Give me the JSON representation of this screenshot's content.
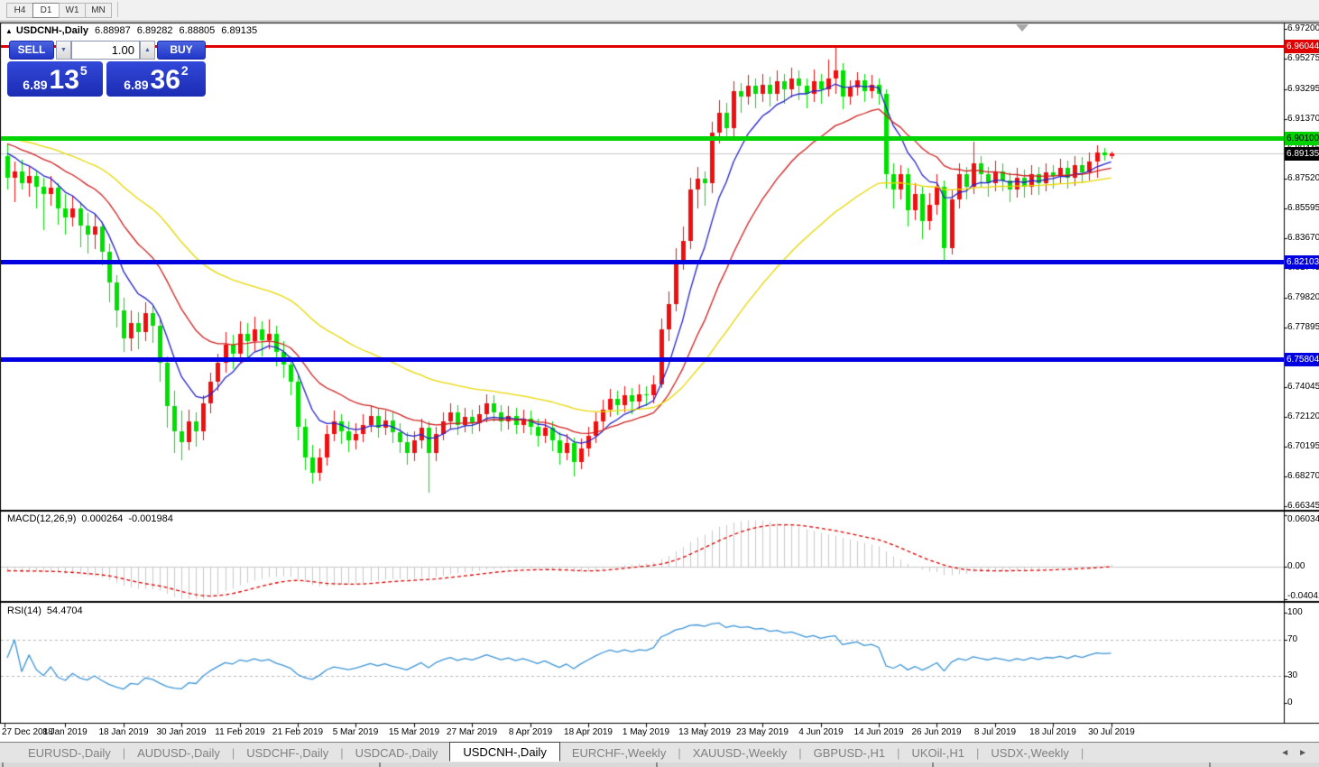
{
  "toolbar": {
    "timeframes": [
      {
        "label": "H4",
        "active": false
      },
      {
        "label": "D1",
        "active": true
      },
      {
        "label": "W1",
        "active": false
      },
      {
        "label": "MN",
        "active": false
      }
    ]
  },
  "chart_header": {
    "collapse_icon": "▲",
    "symbol": "USDCNH-,Daily",
    "open": "6.88987",
    "high": "6.89282",
    "low": "6.88805",
    "close": "6.89135"
  },
  "trade_panel": {
    "sell_label": "SELL",
    "buy_label": "BUY",
    "volume": "1.00",
    "spinner_down_icon": "▼",
    "spinner_up_icon": "▲",
    "sell_price": {
      "prefix": "6.89",
      "big": "13",
      "pip": "5"
    },
    "buy_price": {
      "prefix": "6.89",
      "big": "36",
      "pip": "2"
    }
  },
  "price_axis": {
    "ticks": [
      "6.97200",
      "6.95275",
      "6.93295",
      "6.91370",
      "6.89445",
      "6.87520",
      "6.85595",
      "6.83670",
      "6.81745",
      "6.79820",
      "6.77895",
      "6.74045",
      "6.72120",
      "6.70195",
      "6.68270",
      "6.66345"
    ]
  },
  "levels": [
    {
      "value": 6.96044,
      "label": "6.96044",
      "color": "#E00000",
      "text_color": "#FFFFFF",
      "thickness": 3,
      "name": "resistance-line-upper"
    },
    {
      "value": 6.901,
      "label": "6.90100",
      "color": "#00D400",
      "text_color": "#000000",
      "thickness": 5,
      "name": "resistance-line-lower"
    },
    {
      "value": 6.82103,
      "label": "6.82103",
      "color": "#0000E0",
      "text_color": "#FFFFFF",
      "thickness": 5,
      "name": "support-line-upper"
    },
    {
      "value": 6.75804,
      "label": "6.75804",
      "color": "#0000E0",
      "text_color": "#FFFFFF",
      "thickness": 5,
      "name": "support-line-lower"
    }
  ],
  "bid_marker": {
    "value": 6.89135,
    "label": "6.89135",
    "line_color": "#C8C8C8",
    "badge_bg": "#000000",
    "badge_text": "#FFFFFF"
  },
  "macd_panel": {
    "label": "MACD(12,26,9)",
    "main_value": "0.000264",
    "signal_value": "-0.001984",
    "axis_ticks": [
      "0.060342",
      "0.00",
      "-0.040415"
    ],
    "histogram_color": "#C9C9C9",
    "signal_color": "#DD0000"
  },
  "rsi_panel": {
    "label": "RSI(14)",
    "value": "54.4704",
    "axis_ticks": [
      "100",
      "70",
      "30",
      "0"
    ],
    "line_color": "#3E96D8",
    "level_color": "#B8B8B8"
  },
  "bottom_tabs": {
    "items": [
      "EURUSD-,Daily",
      "AUDUSD-,Daily",
      "USDCHF-,Daily",
      "USDCAD-,Daily",
      "USDCNH-,Daily",
      "EURCHF-,Weekly",
      "XAUUSD-,Weekly",
      "GBPUSD-,H1",
      "UKOil-,H1",
      "USDX-,Weekly"
    ],
    "active_index": 4,
    "scroll_left_icon": "◄",
    "scroll_right_icon": "►"
  },
  "chart_data": {
    "type": "candlestick",
    "symbol": "USDCNH-",
    "timeframe": "Daily",
    "up_color": "#EE1010",
    "down_color": "#00E000",
    "y_axis": {
      "min": 6.66345,
      "max": 6.972
    },
    "x_tick_dates": [
      "27 Dec 2018",
      "8 Jan 2019",
      "18 Jan 2019",
      "30 Jan 2019",
      "11 Feb 2019",
      "21 Feb 2019",
      "5 Mar 2019",
      "15 Mar 2019",
      "27 Mar 2019",
      "8 Apr 2019",
      "18 Apr 2019",
      "1 May 2019",
      "13 May 2019",
      "23 May 2019",
      "4 Jun 2019",
      "14 Jun 2019",
      "26 Jun 2019",
      "8 Jul 2019",
      "18 Jul 2019",
      "30 Jul 2019"
    ],
    "moving_averages": [
      {
        "period": 8,
        "color": "#2222CC",
        "seed": 6.896
      },
      {
        "period": 20,
        "color": "#D02020",
        "seed": 6.9
      },
      {
        "period": 45,
        "color": "#E8D800",
        "seed": 6.903
      }
    ],
    "macd": {
      "fast": 12,
      "slow": 26,
      "signal": 9,
      "axis_max": 0.060342,
      "axis_min": -0.040415
    },
    "rsi": {
      "period": 14,
      "levels": [
        70,
        30
      ]
    },
    "horizontal_levels": [
      6.96044,
      6.901,
      6.82103,
      6.75804
    ],
    "bid_price": 6.89135,
    "candles": [
      [
        6.89,
        6.8975,
        6.8685,
        6.876
      ],
      [
        6.876,
        6.886,
        6.86,
        6.88
      ],
      [
        6.88,
        6.8875,
        6.868,
        6.8725
      ],
      [
        6.8725,
        6.883,
        6.864,
        6.877
      ],
      [
        6.877,
        6.88,
        6.856,
        6.87
      ],
      [
        6.87,
        6.876,
        6.842,
        6.865
      ],
      [
        6.865,
        6.877,
        6.858,
        6.8695
      ],
      [
        6.8695,
        6.872,
        6.845,
        6.856
      ],
      [
        6.856,
        6.865,
        6.839,
        6.85
      ],
      [
        6.85,
        6.864,
        6.844,
        6.856
      ],
      [
        6.856,
        6.86,
        6.831,
        6.845
      ],
      [
        6.845,
        6.853,
        6.827,
        6.839
      ],
      [
        6.839,
        6.852,
        6.83,
        6.844
      ],
      [
        6.844,
        6.847,
        6.819,
        6.828
      ],
      [
        6.828,
        6.833,
        6.795,
        6.808
      ],
      [
        6.808,
        6.813,
        6.779,
        6.79
      ],
      [
        6.79,
        6.798,
        6.763,
        6.772
      ],
      [
        6.772,
        6.79,
        6.764,
        6.782
      ],
      [
        6.782,
        6.789,
        6.765,
        6.776
      ],
      [
        6.776,
        6.795,
        6.77,
        6.788
      ],
      [
        6.788,
        6.793,
        6.769,
        6.78
      ],
      [
        6.78,
        6.784,
        6.744,
        6.756
      ],
      [
        6.756,
        6.76,
        6.714,
        6.728
      ],
      [
        6.728,
        6.738,
        6.698,
        6.712
      ],
      [
        6.712,
        6.725,
        6.693,
        6.705
      ],
      [
        6.705,
        6.726,
        6.7,
        6.718
      ],
      [
        6.718,
        6.724,
        6.702,
        6.712
      ],
      [
        6.712,
        6.735,
        6.706,
        6.73
      ],
      [
        6.73,
        6.75,
        6.724,
        6.744
      ],
      [
        6.744,
        6.762,
        6.738,
        6.756
      ],
      [
        6.756,
        6.776,
        6.75,
        6.768
      ],
      [
        6.768,
        6.774,
        6.752,
        6.762
      ],
      [
        6.762,
        6.783,
        6.756,
        6.775
      ],
      [
        6.775,
        6.782,
        6.759,
        6.77
      ],
      [
        6.77,
        6.786,
        6.764,
        6.778
      ],
      [
        6.778,
        6.783,
        6.76,
        6.771
      ],
      [
        6.771,
        6.784,
        6.765,
        6.775
      ],
      [
        6.775,
        6.78,
        6.754,
        6.763
      ],
      [
        6.763,
        6.77,
        6.746,
        6.755
      ],
      [
        6.755,
        6.76,
        6.735,
        6.744
      ],
      [
        6.744,
        6.748,
        6.706,
        6.715
      ],
      [
        6.715,
        6.72,
        6.687,
        6.695
      ],
      [
        6.695,
        6.703,
        6.678,
        6.685
      ],
      [
        6.685,
        6.701,
        6.68,
        6.695
      ],
      [
        6.695,
        6.716,
        6.69,
        6.71
      ],
      [
        6.71,
        6.725,
        6.705,
        6.718
      ],
      [
        6.718,
        6.723,
        6.704,
        6.712
      ],
      [
        6.712,
        6.718,
        6.698,
        6.706
      ],
      [
        6.706,
        6.717,
        6.7,
        6.71
      ],
      [
        6.71,
        6.723,
        6.705,
        6.716
      ],
      [
        6.716,
        6.728,
        6.711,
        6.722
      ],
      [
        6.722,
        6.727,
        6.708,
        6.714
      ],
      [
        6.714,
        6.725,
        6.709,
        6.719
      ],
      [
        6.719,
        6.724,
        6.704,
        6.711
      ],
      [
        6.711,
        6.717,
        6.698,
        6.705
      ],
      [
        6.705,
        6.711,
        6.69,
        6.698
      ],
      [
        6.698,
        6.712,
        6.693,
        6.706
      ],
      [
        6.706,
        6.72,
        6.701,
        6.714
      ],
      [
        6.714,
        6.718,
        6.672,
        6.698
      ],
      [
        6.698,
        6.715,
        6.693,
        6.71
      ],
      [
        6.71,
        6.724,
        6.706,
        6.718
      ],
      [
        6.718,
        6.73,
        6.713,
        6.724
      ],
      [
        6.724,
        6.729,
        6.71,
        6.716
      ],
      [
        6.716,
        6.727,
        6.711,
        6.721
      ],
      [
        6.721,
        6.726,
        6.71,
        6.717
      ],
      [
        6.717,
        6.729,
        6.712,
        6.723
      ],
      [
        6.723,
        6.736,
        6.718,
        6.73
      ],
      [
        6.73,
        6.735,
        6.718,
        6.724
      ],
      [
        6.724,
        6.729,
        6.712,
        6.718
      ],
      [
        6.718,
        6.728,
        6.713,
        6.722
      ],
      [
        6.722,
        6.727,
        6.71,
        6.716
      ],
      [
        6.716,
        6.726,
        6.711,
        6.72
      ],
      [
        6.72,
        6.725,
        6.709,
        6.715
      ],
      [
        6.715,
        6.72,
        6.702,
        6.709
      ],
      [
        6.709,
        6.72,
        6.704,
        6.714
      ],
      [
        6.714,
        6.718,
        6.699,
        6.706
      ],
      [
        6.706,
        6.711,
        6.69,
        6.698
      ],
      [
        6.698,
        6.71,
        6.693,
        6.704
      ],
      [
        6.704,
        6.708,
        6.683,
        6.692
      ],
      [
        6.692,
        6.707,
        6.687,
        6.701
      ],
      [
        6.701,
        6.715,
        6.696,
        6.709
      ],
      [
        6.709,
        6.724,
        6.704,
        6.718
      ],
      [
        6.718,
        6.732,
        6.713,
        6.726
      ],
      [
        6.726,
        6.739,
        6.721,
        6.733
      ],
      [
        6.733,
        6.738,
        6.722,
        6.729
      ],
      [
        6.729,
        6.741,
        6.724,
        6.735
      ],
      [
        6.735,
        6.74,
        6.723,
        6.731
      ],
      [
        6.731,
        6.742,
        6.726,
        6.736
      ],
      [
        6.736,
        6.741,
        6.728,
        6.735
      ],
      [
        6.735,
        6.748,
        6.73,
        6.742
      ],
      [
        6.742,
        6.785,
        6.74,
        6.778
      ],
      [
        6.778,
        6.802,
        6.77,
        6.794
      ],
      [
        6.794,
        6.83,
        6.789,
        6.822
      ],
      [
        6.822,
        6.844,
        6.816,
        6.835
      ],
      [
        6.835,
        6.876,
        6.83,
        6.868
      ],
      [
        6.868,
        6.883,
        6.856,
        6.875
      ],
      [
        6.875,
        6.88,
        6.858,
        6.872
      ],
      [
        6.872,
        6.912,
        6.866,
        6.905
      ],
      [
        6.905,
        6.926,
        6.898,
        6.918
      ],
      [
        6.918,
        6.924,
        6.9,
        6.908
      ],
      [
        6.908,
        6.938,
        6.902,
        6.932
      ],
      [
        6.932,
        6.937,
        6.918,
        6.928
      ],
      [
        6.928,
        6.942,
        6.923,
        6.935
      ],
      [
        6.935,
        6.94,
        6.921,
        6.93
      ],
      [
        6.93,
        6.943,
        6.925,
        6.936
      ],
      [
        6.936,
        6.941,
        6.922,
        6.93
      ],
      [
        6.93,
        6.945,
        6.925,
        6.938
      ],
      [
        6.938,
        6.943,
        6.924,
        6.933
      ],
      [
        6.933,
        6.947,
        6.928,
        6.94
      ],
      [
        6.94,
        6.945,
        6.926,
        6.935
      ],
      [
        6.935,
        6.94,
        6.921,
        6.93
      ],
      [
        6.93,
        6.946,
        6.925,
        6.938
      ],
      [
        6.938,
        6.943,
        6.924,
        6.933
      ],
      [
        6.933,
        6.952,
        6.928,
        6.94
      ],
      [
        6.94,
        6.9604,
        6.93,
        6.945
      ],
      [
        6.945,
        6.95,
        6.92,
        6.928
      ],
      [
        6.928,
        6.939,
        6.923,
        6.934
      ],
      [
        6.934,
        6.944,
        6.929,
        6.939
      ],
      [
        6.939,
        6.943,
        6.925,
        6.932
      ],
      [
        6.932,
        6.942,
        6.927,
        6.936
      ],
      [
        6.936,
        6.94,
        6.923,
        6.93
      ],
      [
        6.93,
        6.933,
        6.869,
        6.878
      ],
      [
        6.878,
        6.885,
        6.856,
        6.868
      ],
      [
        6.868,
        6.884,
        6.862,
        6.878
      ],
      [
        6.878,
        6.882,
        6.844,
        6.855
      ],
      [
        6.855,
        6.872,
        6.848,
        6.865
      ],
      [
        6.865,
        6.87,
        6.836,
        6.848
      ],
      [
        6.848,
        6.866,
        6.842,
        6.858
      ],
      [
        6.858,
        6.878,
        6.852,
        6.87
      ],
      [
        6.87,
        6.874,
        6.821,
        6.83
      ],
      [
        6.83,
        6.868,
        6.826,
        6.862
      ],
      [
        6.862,
        6.885,
        6.856,
        6.878
      ],
      [
        6.878,
        6.883,
        6.862,
        6.87
      ],
      [
        6.87,
        6.899,
        6.865,
        6.885
      ],
      [
        6.885,
        6.89,
        6.87,
        6.878
      ],
      [
        6.878,
        6.883,
        6.864,
        6.872
      ],
      [
        6.872,
        6.887,
        6.867,
        6.88
      ],
      [
        6.88,
        6.885,
        6.867,
        6.874
      ],
      [
        6.874,
        6.879,
        6.86,
        6.868
      ],
      [
        6.868,
        6.882,
        6.863,
        6.876
      ],
      [
        6.876,
        6.881,
        6.863,
        6.87
      ],
      [
        6.87,
        6.884,
        6.865,
        6.878
      ],
      [
        6.878,
        6.883,
        6.865,
        6.872
      ],
      [
        6.872,
        6.885,
        6.867,
        6.879
      ],
      [
        6.879,
        6.884,
        6.869,
        6.877
      ],
      [
        6.877,
        6.888,
        6.872,
        6.882
      ],
      [
        6.882,
        6.887,
        6.869,
        6.876
      ],
      [
        6.876,
        6.89,
        6.871,
        6.884
      ],
      [
        6.884,
        6.889,
        6.872,
        6.879
      ],
      [
        6.879,
        6.892,
        6.874,
        6.886
      ],
      [
        6.886,
        6.897,
        6.876,
        6.892
      ],
      [
        6.892,
        6.895,
        6.887,
        6.8905
      ],
      [
        6.88987,
        6.89282,
        6.88805,
        6.89135
      ]
    ]
  }
}
